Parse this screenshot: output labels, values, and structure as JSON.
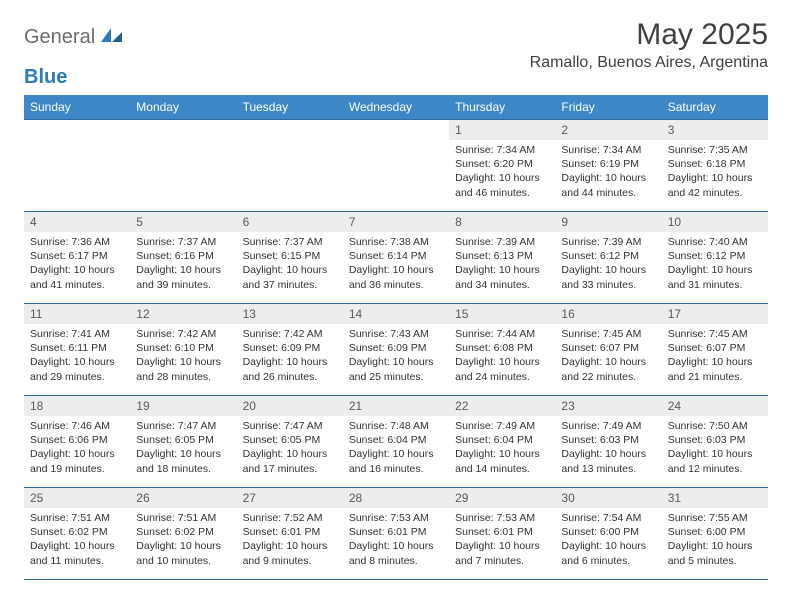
{
  "brand": {
    "general": "General",
    "blue": "Blue"
  },
  "title": "May 2025",
  "location": "Ramallo, Buenos Aires, Argentina",
  "colors": {
    "header_bg": "#3d87c7",
    "header_text": "#ffffff",
    "row_border": "#2f6aa0",
    "daynum_bg": "#eceded",
    "body_text": "#333333",
    "logo_gray": "#6b6b6b",
    "logo_blue": "#2b7bbd"
  },
  "weekdays": [
    "Sunday",
    "Monday",
    "Tuesday",
    "Wednesday",
    "Thursday",
    "Friday",
    "Saturday"
  ],
  "weeks": [
    [
      {
        "empty": true
      },
      {
        "empty": true
      },
      {
        "empty": true
      },
      {
        "empty": true
      },
      {
        "num": "1",
        "sunrise": "Sunrise: 7:34 AM",
        "sunset": "Sunset: 6:20 PM",
        "daylight": "Daylight: 10 hours and 46 minutes."
      },
      {
        "num": "2",
        "sunrise": "Sunrise: 7:34 AM",
        "sunset": "Sunset: 6:19 PM",
        "daylight": "Daylight: 10 hours and 44 minutes."
      },
      {
        "num": "3",
        "sunrise": "Sunrise: 7:35 AM",
        "sunset": "Sunset: 6:18 PM",
        "daylight": "Daylight: 10 hours and 42 minutes."
      }
    ],
    [
      {
        "num": "4",
        "sunrise": "Sunrise: 7:36 AM",
        "sunset": "Sunset: 6:17 PM",
        "daylight": "Daylight: 10 hours and 41 minutes."
      },
      {
        "num": "5",
        "sunrise": "Sunrise: 7:37 AM",
        "sunset": "Sunset: 6:16 PM",
        "daylight": "Daylight: 10 hours and 39 minutes."
      },
      {
        "num": "6",
        "sunrise": "Sunrise: 7:37 AM",
        "sunset": "Sunset: 6:15 PM",
        "daylight": "Daylight: 10 hours and 37 minutes."
      },
      {
        "num": "7",
        "sunrise": "Sunrise: 7:38 AM",
        "sunset": "Sunset: 6:14 PM",
        "daylight": "Daylight: 10 hours and 36 minutes."
      },
      {
        "num": "8",
        "sunrise": "Sunrise: 7:39 AM",
        "sunset": "Sunset: 6:13 PM",
        "daylight": "Daylight: 10 hours and 34 minutes."
      },
      {
        "num": "9",
        "sunrise": "Sunrise: 7:39 AM",
        "sunset": "Sunset: 6:12 PM",
        "daylight": "Daylight: 10 hours and 33 minutes."
      },
      {
        "num": "10",
        "sunrise": "Sunrise: 7:40 AM",
        "sunset": "Sunset: 6:12 PM",
        "daylight": "Daylight: 10 hours and 31 minutes."
      }
    ],
    [
      {
        "num": "11",
        "sunrise": "Sunrise: 7:41 AM",
        "sunset": "Sunset: 6:11 PM",
        "daylight": "Daylight: 10 hours and 29 minutes."
      },
      {
        "num": "12",
        "sunrise": "Sunrise: 7:42 AM",
        "sunset": "Sunset: 6:10 PM",
        "daylight": "Daylight: 10 hours and 28 minutes."
      },
      {
        "num": "13",
        "sunrise": "Sunrise: 7:42 AM",
        "sunset": "Sunset: 6:09 PM",
        "daylight": "Daylight: 10 hours and 26 minutes."
      },
      {
        "num": "14",
        "sunrise": "Sunrise: 7:43 AM",
        "sunset": "Sunset: 6:09 PM",
        "daylight": "Daylight: 10 hours and 25 minutes."
      },
      {
        "num": "15",
        "sunrise": "Sunrise: 7:44 AM",
        "sunset": "Sunset: 6:08 PM",
        "daylight": "Daylight: 10 hours and 24 minutes."
      },
      {
        "num": "16",
        "sunrise": "Sunrise: 7:45 AM",
        "sunset": "Sunset: 6:07 PM",
        "daylight": "Daylight: 10 hours and 22 minutes."
      },
      {
        "num": "17",
        "sunrise": "Sunrise: 7:45 AM",
        "sunset": "Sunset: 6:07 PM",
        "daylight": "Daylight: 10 hours and 21 minutes."
      }
    ],
    [
      {
        "num": "18",
        "sunrise": "Sunrise: 7:46 AM",
        "sunset": "Sunset: 6:06 PM",
        "daylight": "Daylight: 10 hours and 19 minutes."
      },
      {
        "num": "19",
        "sunrise": "Sunrise: 7:47 AM",
        "sunset": "Sunset: 6:05 PM",
        "daylight": "Daylight: 10 hours and 18 minutes."
      },
      {
        "num": "20",
        "sunrise": "Sunrise: 7:47 AM",
        "sunset": "Sunset: 6:05 PM",
        "daylight": "Daylight: 10 hours and 17 minutes."
      },
      {
        "num": "21",
        "sunrise": "Sunrise: 7:48 AM",
        "sunset": "Sunset: 6:04 PM",
        "daylight": "Daylight: 10 hours and 16 minutes."
      },
      {
        "num": "22",
        "sunrise": "Sunrise: 7:49 AM",
        "sunset": "Sunset: 6:04 PM",
        "daylight": "Daylight: 10 hours and 14 minutes."
      },
      {
        "num": "23",
        "sunrise": "Sunrise: 7:49 AM",
        "sunset": "Sunset: 6:03 PM",
        "daylight": "Daylight: 10 hours and 13 minutes."
      },
      {
        "num": "24",
        "sunrise": "Sunrise: 7:50 AM",
        "sunset": "Sunset: 6:03 PM",
        "daylight": "Daylight: 10 hours and 12 minutes."
      }
    ],
    [
      {
        "num": "25",
        "sunrise": "Sunrise: 7:51 AM",
        "sunset": "Sunset: 6:02 PM",
        "daylight": "Daylight: 10 hours and 11 minutes."
      },
      {
        "num": "26",
        "sunrise": "Sunrise: 7:51 AM",
        "sunset": "Sunset: 6:02 PM",
        "daylight": "Daylight: 10 hours and 10 minutes."
      },
      {
        "num": "27",
        "sunrise": "Sunrise: 7:52 AM",
        "sunset": "Sunset: 6:01 PM",
        "daylight": "Daylight: 10 hours and 9 minutes."
      },
      {
        "num": "28",
        "sunrise": "Sunrise: 7:53 AM",
        "sunset": "Sunset: 6:01 PM",
        "daylight": "Daylight: 10 hours and 8 minutes."
      },
      {
        "num": "29",
        "sunrise": "Sunrise: 7:53 AM",
        "sunset": "Sunset: 6:01 PM",
        "daylight": "Daylight: 10 hours and 7 minutes."
      },
      {
        "num": "30",
        "sunrise": "Sunrise: 7:54 AM",
        "sunset": "Sunset: 6:00 PM",
        "daylight": "Daylight: 10 hours and 6 minutes."
      },
      {
        "num": "31",
        "sunrise": "Sunrise: 7:55 AM",
        "sunset": "Sunset: 6:00 PM",
        "daylight": "Daylight: 10 hours and 5 minutes."
      }
    ]
  ]
}
